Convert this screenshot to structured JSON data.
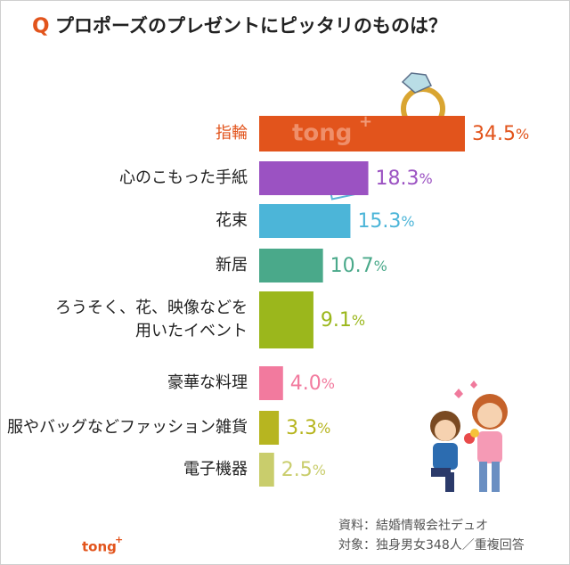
{
  "chart_data": {
    "type": "bar",
    "orientation": "horizontal",
    "title_prefix": "Q",
    "title": "プロポーズのプレゼントにピッタリのものは？",
    "categories": [
      "指輪",
      "心のこもった手紙",
      "花束",
      "新居",
      "ろうそく、花、映像などを\n用いたイベント",
      "豪華な料理",
      "服やバッグなどファッション雑貨",
      "電子機器"
    ],
    "values": [
      34.5,
      18.3,
      15.3,
      10.7,
      9.1,
      4.0,
      3.3,
      2.5
    ],
    "value_labels": [
      "34.5%",
      "18.3%",
      "15.3%",
      "10.7%",
      "9.1%",
      "4.0%",
      "3.3%",
      "2.5%"
    ],
    "colors": [
      "#e2541c",
      "#9b52c2",
      "#4cb5d8",
      "#4aa98a",
      "#9bb71c",
      "#f27a9e",
      "#b7b520",
      "#c9cd6c"
    ],
    "highlight_label_color": "#e2541c",
    "bar_watermark": "tong",
    "source": "資料：結婚情報会社デュオ",
    "subjects": "対象：独身男女348人／重複回答",
    "logo": "tong"
  }
}
